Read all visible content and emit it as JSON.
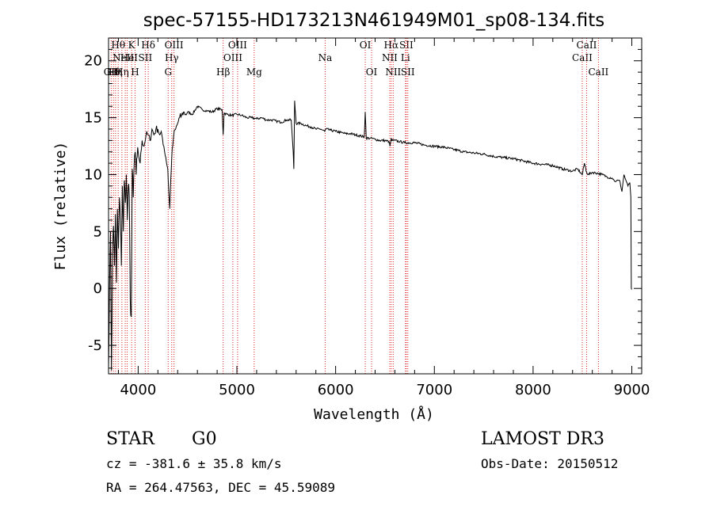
{
  "chart_data": {
    "type": "line",
    "title": "spec-57155-HD173213N461949M01_sp08-134.fits",
    "xlabel": "Wavelength (Å)",
    "ylabel": "Flux (relative)",
    "xlim": [
      3700,
      9100
    ],
    "ylim": [
      -7.5,
      22
    ],
    "xticks": [
      4000,
      5000,
      6000,
      7000,
      8000,
      9000
    ],
    "yticks": [
      -5,
      0,
      5,
      10,
      15,
      20
    ],
    "spectrum": {
      "x": [
        3700,
        3710,
        3720,
        3730,
        3740,
        3750,
        3760,
        3770,
        3780,
        3790,
        3800,
        3810,
        3820,
        3830,
        3840,
        3850,
        3860,
        3870,
        3880,
        3890,
        3900,
        3910,
        3920,
        3930,
        3940,
        3950,
        3960,
        3970,
        3980,
        3990,
        4000,
        4020,
        4040,
        4060,
        4080,
        4100,
        4120,
        4140,
        4160,
        4180,
        4200,
        4220,
        4240,
        4260,
        4280,
        4300,
        4310,
        4320,
        4330,
        4340,
        4350,
        4360,
        4380,
        4400,
        4420,
        4440,
        4460,
        4480,
        4500,
        4550,
        4600,
        4650,
        4700,
        4750,
        4800,
        4850,
        4861,
        4870,
        4900,
        4950,
        5000,
        5050,
        5100,
        5150,
        5200,
        5250,
        5300,
        5350,
        5400,
        5450,
        5500,
        5550,
        5570,
        5577,
        5585,
        5600,
        5650,
        5700,
        5750,
        5800,
        5850,
        5890,
        5900,
        5950,
        6000,
        6050,
        6100,
        6150,
        6200,
        6250,
        6290,
        6300,
        6310,
        6350,
        6400,
        6450,
        6500,
        6540,
        6550,
        6563,
        6570,
        6600,
        6650,
        6700,
        6800,
        6900,
        7000,
        7100,
        7200,
        7300,
        7400,
        7500,
        7600,
        7700,
        7800,
        7900,
        8000,
        8100,
        8200,
        8300,
        8400,
        8450,
        8498,
        8520,
        8542,
        8560,
        8600,
        8662,
        8700,
        8750,
        8800,
        8820,
        8840,
        8860,
        8880,
        8900,
        8920,
        8940,
        8960,
        8980,
        8990,
        8995,
        9000
      ],
      "y": [
        -7.0,
        0.0,
        5.0,
        -7.2,
        3.0,
        5.5,
        2.0,
        6.5,
        0.5,
        7.0,
        3.5,
        8.0,
        6.0,
        2.0,
        9.0,
        5.0,
        9.5,
        7.5,
        10.0,
        6.0,
        9.0,
        8.0,
        -1.0,
        -2.5,
        10.5,
        8.0,
        11.0,
        12.0,
        10.0,
        11.5,
        12.0,
        11.0,
        13.0,
        12.5,
        13.5,
        13.5,
        13.0,
        14.0,
        13.5,
        14.0,
        14.0,
        13.5,
        13.5,
        12.5,
        11.5,
        10.5,
        8.5,
        7.0,
        9.5,
        11.5,
        12.5,
        13.5,
        14.0,
        14.5,
        15.0,
        15.2,
        15.5,
        15.3,
        15.5,
        15.3,
        16.0,
        15.7,
        15.6,
        15.5,
        15.8,
        15.7,
        13.5,
        15.4,
        15.3,
        15.2,
        15.3,
        15.2,
        15.0,
        15.0,
        14.9,
        15.0,
        14.8,
        14.8,
        14.7,
        14.6,
        14.8,
        14.8,
        12.0,
        10.5,
        16.5,
        14.5,
        14.5,
        14.3,
        14.2,
        14.0,
        14.0,
        13.8,
        14.0,
        13.9,
        13.8,
        13.7,
        13.6,
        13.6,
        13.5,
        13.4,
        13.3,
        15.5,
        13.2,
        13.2,
        13.1,
        13.0,
        13.0,
        12.9,
        12.5,
        13.2,
        13.0,
        13.0,
        12.9,
        12.8,
        12.8,
        12.6,
        12.5,
        12.4,
        12.2,
        12.0,
        11.9,
        11.8,
        11.6,
        11.5,
        11.4,
        11.2,
        11.0,
        10.9,
        10.8,
        10.5,
        10.3,
        10.5,
        10.0,
        11.0,
        10.2,
        10.0,
        10.2,
        10.1,
        10.0,
        9.8,
        9.7,
        9.5,
        9.4,
        9.5,
        9.4,
        8.5,
        10.0,
        9.5,
        9.0,
        9.3,
        8.0,
        0.0,
        -0.1
      ]
    },
    "lines": [
      {
        "wl": 3727,
        "label": "OII",
        "row": 3
      },
      {
        "wl": 3750,
        "label": "Hθ",
        "row": 3
      },
      {
        "wl": 3771,
        "label": "Hη",
        "row": 3
      },
      {
        "wl": 3798,
        "label": "Hθ",
        "row": 1
      },
      {
        "wl": 3835,
        "label": "Hη",
        "row": 3
      },
      {
        "wl": 3869,
        "label": "NeIII",
        "row": 2
      },
      {
        "wl": 3889,
        "label": "He",
        "row": 2
      },
      {
        "wl": 3934,
        "label": "K",
        "row": 1
      },
      {
        "wl": 3969,
        "label": "H",
        "row": 3
      },
      {
        "wl": 4072,
        "label": "SII",
        "row": 2
      },
      {
        "wl": 4102,
        "label": "Hδ",
        "row": 1
      },
      {
        "wl": 4304,
        "label": "G",
        "row": 3
      },
      {
        "wl": 4340,
        "label": "Hγ",
        "row": 2
      },
      {
        "wl": 4363,
        "label": "OIII",
        "row": 1
      },
      {
        "wl": 4861,
        "label": "Hβ",
        "row": 3
      },
      {
        "wl": 4959,
        "label": "OIII",
        "row": 2
      },
      {
        "wl": 5007,
        "label": "OIII",
        "row": 1
      },
      {
        "wl": 5175,
        "label": "Mg",
        "row": 3
      },
      {
        "wl": 5894,
        "label": "Na",
        "row": 2
      },
      {
        "wl": 6300,
        "label": "OI",
        "row": 1
      },
      {
        "wl": 6364,
        "label": "OI",
        "row": 3
      },
      {
        "wl": 6548,
        "label": "NII",
        "row": 2
      },
      {
        "wl": 6563,
        "label": "Hα",
        "row": 1
      },
      {
        "wl": 6583,
        "label": "NII",
        "row": 3
      },
      {
        "wl": 6707,
        "label": "Li",
        "row": 2
      },
      {
        "wl": 6716,
        "label": "SII",
        "row": 1
      },
      {
        "wl": 6731,
        "label": "SII",
        "row": 3
      },
      {
        "wl": 8498,
        "label": "CaII",
        "row": 2
      },
      {
        "wl": 8542,
        "label": "CaII",
        "row": 1
      },
      {
        "wl": 8662,
        "label": "CaII",
        "row": 3
      }
    ]
  },
  "info": {
    "class": "STAR",
    "subclass": "G0",
    "survey": "LAMOST DR3",
    "cz": "cz = -381.6 ± 35.8 km/s",
    "obs_date": "Obs-Date: 20150512",
    "radec": "RA = 264.47563, DEC =  45.59089"
  }
}
